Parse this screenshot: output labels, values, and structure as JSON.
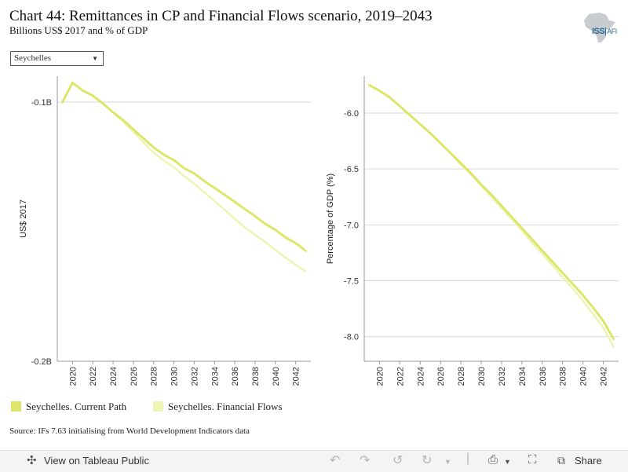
{
  "header": {
    "title": "Chart 44: Remittances in CP and Financial Flows scenario, 2019–2043",
    "subtitle": "Billions US$ 2017 and % of GDP"
  },
  "logo": {
    "text": "ISS",
    "text_suffix": "AFI",
    "icon": "africa-map-icon"
  },
  "filter": {
    "selected": "Seychelles"
  },
  "colors": {
    "current_path": "#dde56a",
    "financial_flows": "#eef4b4",
    "grid": "#d9d9d9",
    "axis": "#999999"
  },
  "chart_data": [
    {
      "type": "line",
      "ylabel": "US$ 2017",
      "ylim": [
        -0.2,
        -0.09
      ],
      "yticks": [
        -0.1,
        -0.2
      ],
      "ytick_labels": [
        "-0.1B",
        "-0.2B"
      ],
      "xticks": [
        2020,
        2022,
        2024,
        2026,
        2028,
        2030,
        2032,
        2034,
        2036,
        2038,
        2040,
        2042
      ],
      "grid": true,
      "x": [
        2019,
        2020,
        2021,
        2022,
        2023,
        2024,
        2025,
        2026,
        2027,
        2028,
        2029,
        2030,
        2031,
        2032,
        2033,
        2034,
        2035,
        2036,
        2037,
        2038,
        2039,
        2040,
        2041,
        2042,
        2043
      ],
      "series": [
        {
          "name": "Seychelles. Current Path",
          "values": [
            -0.1,
            -0.0925,
            -0.0955,
            -0.0975,
            -0.1005,
            -0.104,
            -0.107,
            -0.1105,
            -0.114,
            -0.1175,
            -0.1203,
            -0.1224,
            -0.1255,
            -0.1275,
            -0.1305,
            -0.1331,
            -0.1358,
            -0.1385,
            -0.1413,
            -0.144,
            -0.147,
            -0.1493,
            -0.1522,
            -0.1544,
            -0.1574
          ]
        },
        {
          "name": "Seychelles. Financial Flows",
          "values": [
            -0.1,
            -0.0925,
            -0.0955,
            -0.0975,
            -0.1005,
            -0.104,
            -0.1075,
            -0.1115,
            -0.1155,
            -0.1195,
            -0.1225,
            -0.1252,
            -0.1285,
            -0.1315,
            -0.1348,
            -0.1382,
            -0.1416,
            -0.145,
            -0.1484,
            -0.1512,
            -0.154,
            -0.157,
            -0.16,
            -0.1628,
            -0.1654
          ]
        }
      ]
    },
    {
      "type": "line",
      "ylabel": "Percentage of GDP (%)",
      "ylim": [
        -8.22,
        -5.67
      ],
      "yticks": [
        -6.0,
        -6.5,
        -7.0,
        -7.5,
        -8.0
      ],
      "ytick_labels": [
        "-6.0",
        "-6.5",
        "-7.0",
        "-7.5",
        "-8.0"
      ],
      "xticks": [
        2020,
        2022,
        2024,
        2026,
        2028,
        2030,
        2032,
        2034,
        2036,
        2038,
        2040,
        2042
      ],
      "grid": true,
      "x": [
        2019,
        2020,
        2021,
        2022,
        2023,
        2024,
        2025,
        2026,
        2027,
        2028,
        2029,
        2030,
        2031,
        2032,
        2033,
        2034,
        2035,
        2036,
        2037,
        2038,
        2039,
        2040,
        2041,
        2042,
        2043
      ],
      "series": [
        {
          "name": "Seychelles. Current Path",
          "values": [
            -5.75,
            -5.8,
            -5.86,
            -5.94,
            -6.02,
            -6.1,
            -6.18,
            -6.27,
            -6.36,
            -6.45,
            -6.54,
            -6.64,
            -6.73,
            -6.83,
            -6.93,
            -7.03,
            -7.13,
            -7.23,
            -7.33,
            -7.43,
            -7.53,
            -7.63,
            -7.74,
            -7.86,
            -8.02
          ]
        },
        {
          "name": "Seychelles. Financial Flows",
          "values": [
            -5.75,
            -5.8,
            -5.86,
            -5.94,
            -6.02,
            -6.1,
            -6.18,
            -6.27,
            -6.36,
            -6.46,
            -6.55,
            -6.65,
            -6.75,
            -6.85,
            -6.95,
            -7.05,
            -7.16,
            -7.26,
            -7.36,
            -7.47,
            -7.57,
            -7.68,
            -7.8,
            -7.92,
            -8.09
          ]
        }
      ]
    }
  ],
  "legend": {
    "items": [
      {
        "label": "Seychelles. Current Path"
      },
      {
        "label": "Seychelles. Financial Flows"
      }
    ]
  },
  "source": "Source: IFs 7.63 initialising from World Development Indicators data",
  "toolbar": {
    "view_label": "View on Tableau Public",
    "share_label": "Share"
  }
}
